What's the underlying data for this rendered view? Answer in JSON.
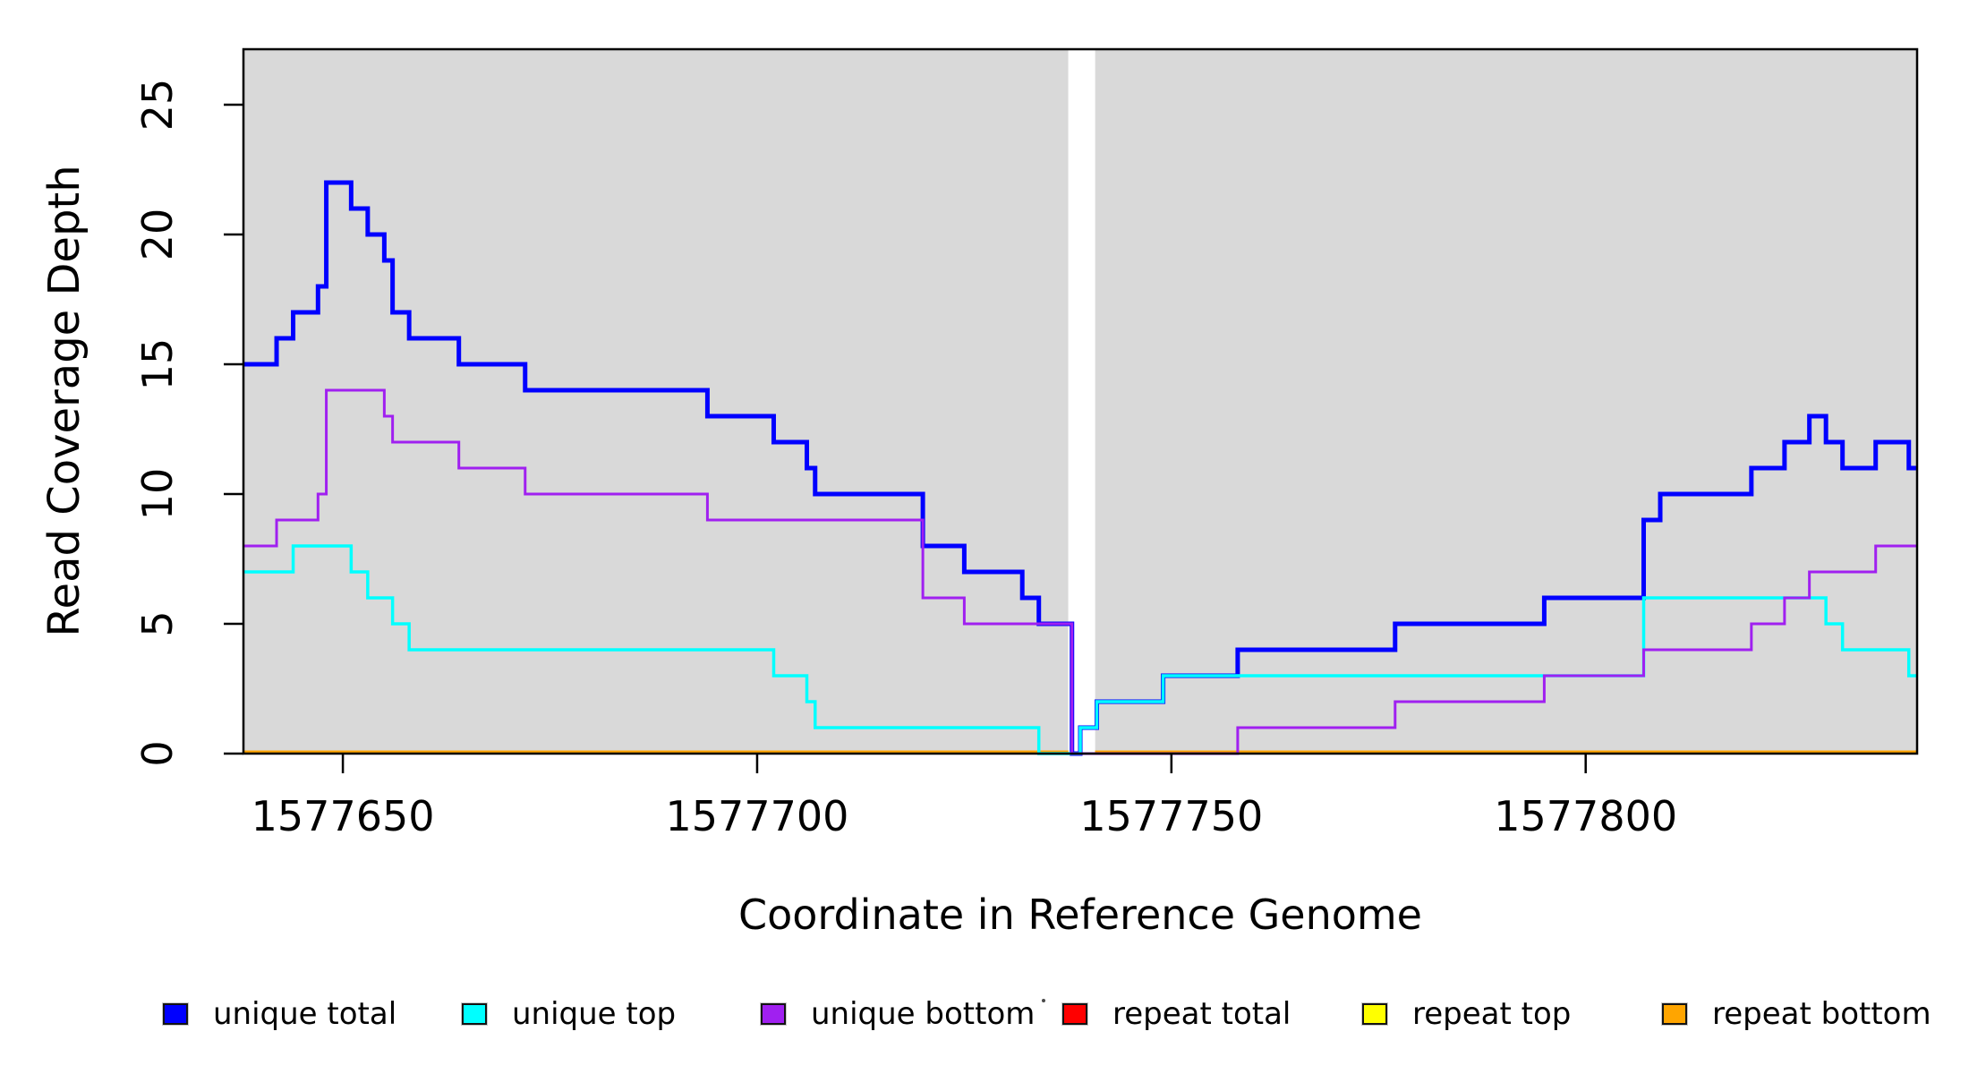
{
  "figure": {
    "xlabel": "Coordinate in Reference Genome",
    "ylabel": "Read Coverage Depth"
  },
  "legend": {
    "items": [
      {
        "label": "unique total",
        "color": "#0000FF"
      },
      {
        "label": "unique top",
        "color": "#00FFFF"
      },
      {
        "label": "unique bottom",
        "color": "#A020F0"
      },
      {
        "label": "repeat total",
        "color": "#FF0000"
      },
      {
        "label": "repeat top",
        "color": "#FFFF00"
      },
      {
        "label": "repeat bottom",
        "color": "#FFA500"
      }
    ]
  },
  "chart_data": {
    "type": "line",
    "step_mode": "step-post",
    "title": "",
    "xlabel": "Coordinate in Reference Genome",
    "ylabel": "Read Coverage Depth",
    "x_domain": [
      1577638,
      1577840
    ],
    "y_drawn_max": 27.14,
    "ylim": [
      0,
      27.14
    ],
    "x_ticks": [
      1577650,
      1577700,
      1577750,
      1577800
    ],
    "y_ticks": [
      0,
      5,
      10,
      15,
      20,
      25
    ],
    "grid": false,
    "legend_position": "bottom",
    "plot_background": "#d9d9d9",
    "masked_region": {
      "from": 1577737.55,
      "to": 1577740.8
    },
    "series": [
      {
        "name": "unique total",
        "color": "#0000FF",
        "steps": [
          [
            1577638,
            15
          ],
          [
            1577642,
            16
          ],
          [
            1577644,
            17
          ],
          [
            1577647,
            18
          ],
          [
            1577648,
            22
          ],
          [
            1577651,
            21
          ],
          [
            1577653,
            20
          ],
          [
            1577655,
            19
          ],
          [
            1577656,
            17
          ],
          [
            1577658,
            16
          ],
          [
            1577664,
            15
          ],
          [
            1577672,
            14
          ],
          [
            1577694,
            13
          ],
          [
            1577702,
            12
          ],
          [
            1577706,
            11
          ],
          [
            1577707,
            10
          ],
          [
            1577720,
            8
          ],
          [
            1577725,
            7
          ],
          [
            1577732,
            6
          ],
          [
            1577734,
            5
          ],
          [
            1577738,
            0
          ],
          [
            1577739,
            1
          ],
          [
            1577741,
            2
          ],
          [
            1577749,
            3
          ],
          [
            1577758,
            4
          ],
          [
            1577777,
            5
          ],
          [
            1577795,
            6
          ],
          [
            1577807,
            9
          ],
          [
            1577809,
            10
          ],
          [
            1577820,
            11
          ],
          [
            1577824,
            12
          ],
          [
            1577827,
            13
          ],
          [
            1577829,
            12
          ],
          [
            1577831,
            11
          ],
          [
            1577835,
            12
          ],
          [
            1577839,
            11
          ]
        ]
      },
      {
        "name": "unique top",
        "color": "#00FFFF",
        "steps": [
          [
            1577638,
            7
          ],
          [
            1577644,
            8
          ],
          [
            1577651,
            7
          ],
          [
            1577653,
            6
          ],
          [
            1577656,
            5
          ],
          [
            1577658,
            4
          ],
          [
            1577702,
            3
          ],
          [
            1577706,
            2
          ],
          [
            1577707,
            1
          ],
          [
            1577734,
            0
          ],
          [
            1577739,
            1
          ],
          [
            1577741,
            2
          ],
          [
            1577749,
            3
          ],
          [
            1577807,
            6
          ],
          [
            1577829,
            5
          ],
          [
            1577831,
            4
          ],
          [
            1577839,
            3
          ]
        ]
      },
      {
        "name": "unique bottom",
        "color": "#A020F0",
        "steps": [
          [
            1577638,
            8
          ],
          [
            1577642,
            9
          ],
          [
            1577647,
            10
          ],
          [
            1577648,
            14
          ],
          [
            1577655,
            13
          ],
          [
            1577656,
            12
          ],
          [
            1577664,
            11
          ],
          [
            1577672,
            10
          ],
          [
            1577694,
            9
          ],
          [
            1577720,
            6
          ],
          [
            1577725,
            5
          ],
          [
            1577738,
            0
          ],
          [
            1577758,
            1
          ],
          [
            1577777,
            2
          ],
          [
            1577795,
            3
          ],
          [
            1577807,
            4
          ],
          [
            1577820,
            5
          ],
          [
            1577824,
            6
          ],
          [
            1577827,
            7
          ],
          [
            1577835,
            8
          ]
        ]
      },
      {
        "name": "repeat total",
        "color": "#FF0000",
        "constant_value": 0,
        "segments": [
          [
            1577638,
            1577737.55
          ],
          [
            1577740.8,
            1577840
          ]
        ]
      },
      {
        "name": "repeat top",
        "color": "#FFFF00",
        "constant_value": 0,
        "segments": [
          [
            1577638,
            1577737.55
          ],
          [
            1577740.8,
            1577840
          ]
        ]
      },
      {
        "name": "repeat bottom",
        "color": "#FFA500",
        "constant_value": 0,
        "segments": [
          [
            1577638,
            1577737.55
          ],
          [
            1577740.8,
            1577840
          ]
        ]
      }
    ]
  }
}
